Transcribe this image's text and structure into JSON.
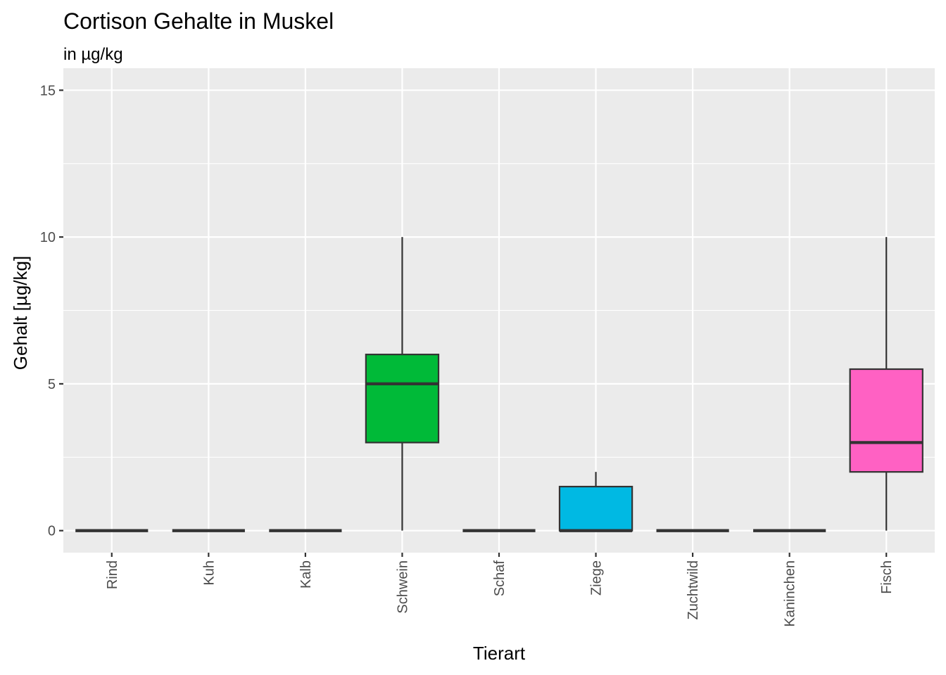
{
  "chart_data": {
    "type": "boxplot",
    "title": "Cortison Gehalte in Muskel",
    "subtitle": "in µg/kg",
    "xlabel": "Tierart",
    "ylabel": "Gehalt [µg/kg]",
    "ylim": [
      -0.75,
      15.75
    ],
    "yticks": [
      0,
      5,
      10,
      15
    ],
    "grid": true,
    "legend": "none",
    "categories": [
      "Rind",
      "Kuh",
      "Kalb",
      "Schwein",
      "Schaf",
      "Ziege",
      "Zuchtwild",
      "Kaninchen",
      "Fisch"
    ],
    "boxes": [
      {
        "category": "Rind",
        "min": 0,
        "q1": 0,
        "median": 0,
        "q3": 0,
        "max": 0,
        "color": "#F8766D"
      },
      {
        "category": "Kuh",
        "min": 0,
        "q1": 0,
        "median": 0,
        "q3": 0,
        "max": 0,
        "color": "#D39200"
      },
      {
        "category": "Kalb",
        "min": 0,
        "q1": 0,
        "median": 0,
        "q3": 0,
        "max": 0,
        "color": "#93AA00"
      },
      {
        "category": "Schwein",
        "min": 0,
        "q1": 3,
        "median": 5,
        "q3": 6,
        "max": 10,
        "color": "#00BA38"
      },
      {
        "category": "Schaf",
        "min": 0,
        "q1": 0,
        "median": 0,
        "q3": 0,
        "max": 0,
        "color": "#00C19F"
      },
      {
        "category": "Ziege",
        "min": 0,
        "q1": 0,
        "median": 0,
        "q3": 1.5,
        "max": 2,
        "color": "#00B9E3"
      },
      {
        "category": "Zuchtwild",
        "min": 0,
        "q1": 0,
        "median": 0,
        "q3": 0,
        "max": 0,
        "color": "#619CFF"
      },
      {
        "category": "Kaninchen",
        "min": 0,
        "q1": 0,
        "median": 0,
        "q3": 0,
        "max": 0,
        "color": "#DB72FB"
      },
      {
        "category": "Fisch",
        "min": 0,
        "q1": 2,
        "median": 3,
        "q3": 5.5,
        "max": 10,
        "color": "#FF61C3"
      }
    ],
    "colors": {
      "panel_background": "#EBEBEB",
      "grid_major": "#FFFFFF",
      "box_outline": "#333333",
      "tick_text": "#4D4D4D"
    }
  }
}
